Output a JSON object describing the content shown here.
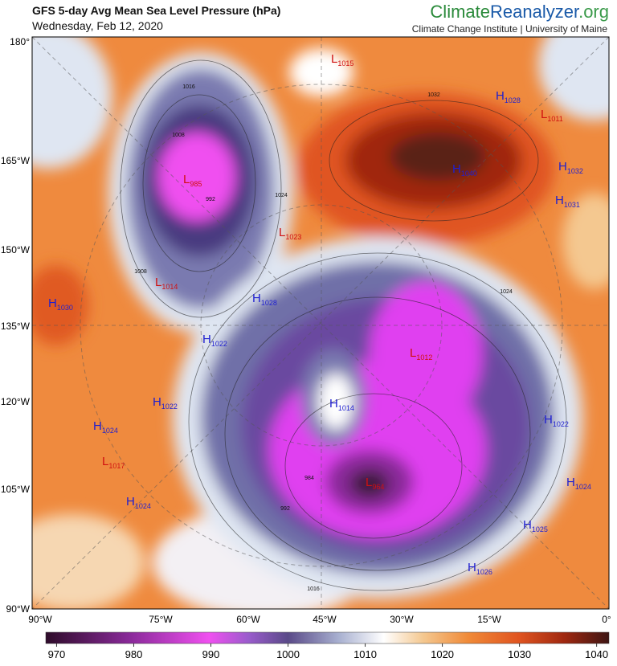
{
  "header": {
    "title": "GFS 5-day Avg Mean Sea Level Pressure (hPa)",
    "date": "Wednesday, Feb 12, 2020",
    "brand_climate": "Climate",
    "brand_reanalyzer": "Reanalyzer",
    "brand_org": ".org",
    "institute": "Climate Change Institute | University of Maine"
  },
  "axis": {
    "left": [
      "180°",
      "165°W",
      "150°W",
      "135°W",
      "120°W",
      "105°W",
      "90°W"
    ],
    "bottom": [
      "90°W",
      "75°W",
      "60°W",
      "45°W",
      "30°W",
      "15°W",
      "0°"
    ]
  },
  "centers": [
    {
      "kind": "L",
      "value": 1015
    },
    {
      "kind": "H",
      "value": 1028
    },
    {
      "kind": "L",
      "value": 1011
    },
    {
      "kind": "H",
      "value": 1040
    },
    {
      "kind": "H",
      "value": 1032
    },
    {
      "kind": "H",
      "value": 1031
    },
    {
      "kind": "L",
      "value": 985
    },
    {
      "kind": "L",
      "value": 1023
    },
    {
      "kind": "L",
      "value": 1014
    },
    {
      "kind": "H",
      "value": 1028
    },
    {
      "kind": "H",
      "value": 1030
    },
    {
      "kind": "H",
      "value": 1022
    },
    {
      "kind": "L",
      "value": 1012
    },
    {
      "kind": "H",
      "value": 1022
    },
    {
      "kind": "H",
      "value": 1014
    },
    {
      "kind": "H",
      "value": 1024
    },
    {
      "kind": "H",
      "value": 1022
    },
    {
      "kind": "L",
      "value": 1017
    },
    {
      "kind": "L",
      "value": 964
    },
    {
      "kind": "H",
      "value": 1024
    },
    {
      "kind": "H",
      "value": 1024
    },
    {
      "kind": "H",
      "value": 1025
    },
    {
      "kind": "H",
      "value": 1026
    }
  ],
  "contour_labels": [
    1016,
    1008,
    1008,
    992,
    1032,
    1024,
    1024,
    1016,
    992,
    984
  ],
  "colorbar": {
    "range": [
      968.6,
      1041.6
    ],
    "ticks": [
      970,
      980,
      990,
      1000,
      1010,
      1020,
      1030,
      1040
    ]
  }
}
